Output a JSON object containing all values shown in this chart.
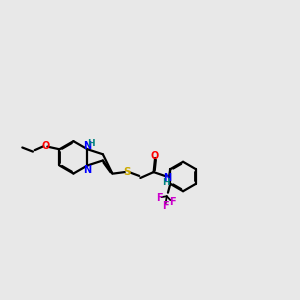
{
  "bg_color": "#e8e8e8",
  "bond_color": "#000000",
  "figsize": [
    3.0,
    3.0
  ],
  "dpi": 100,
  "lw": 1.6,
  "lw_inner": 1.3,
  "colors": {
    "N": "#0000ff",
    "O": "#ff0000",
    "S": "#ccaa00",
    "F": "#cc00cc",
    "H_teal": "#008080",
    "H_blue": "#0000ff",
    "C": "#000000"
  }
}
